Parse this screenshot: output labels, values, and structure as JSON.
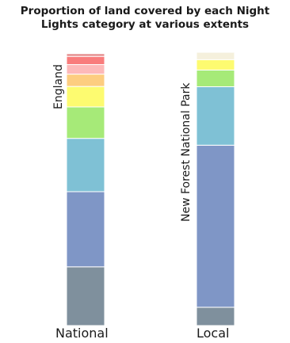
{
  "chart_data": {
    "type": "bar",
    "stacked": true,
    "orientation": "vertical",
    "title_lines": [
      "Proportion of land covered by each Night",
      "Lights category at various extents"
    ],
    "xlabel": "",
    "ylabel": "",
    "ylim": [
      0,
      1
    ],
    "grid": false,
    "legend": "none",
    "categories": [
      "National",
      "Local"
    ],
    "extent_labels": [
      "England",
      "New Forest National Park"
    ],
    "series": [
      {
        "color": "#7f909d",
        "values": [
          0.215,
          0.067
        ]
      },
      {
        "color": "#7f96c6",
        "values": [
          0.275,
          0.593
        ]
      },
      {
        "color": "#7fc1d5",
        "values": [
          0.195,
          0.214
        ]
      },
      {
        "color": "#a6ea78",
        "values": [
          0.115,
          0.061
        ]
      },
      {
        "color": "#fdfb70",
        "values": [
          0.075,
          0.038
        ]
      },
      {
        "color": "#fdcd80",
        "values": [
          0.045,
          0.0
        ]
      },
      {
        "color": "#fdb9b9",
        "values": [
          0.035,
          0.0
        ]
      },
      {
        "color": "#f97c7c",
        "values": [
          0.03,
          0.0
        ]
      },
      {
        "color": "#e58f8f",
        "values": [
          0.01,
          0.0
        ]
      },
      {
        "color": "#f5f0dc",
        "values": [
          0.0,
          0.027
        ]
      }
    ]
  }
}
